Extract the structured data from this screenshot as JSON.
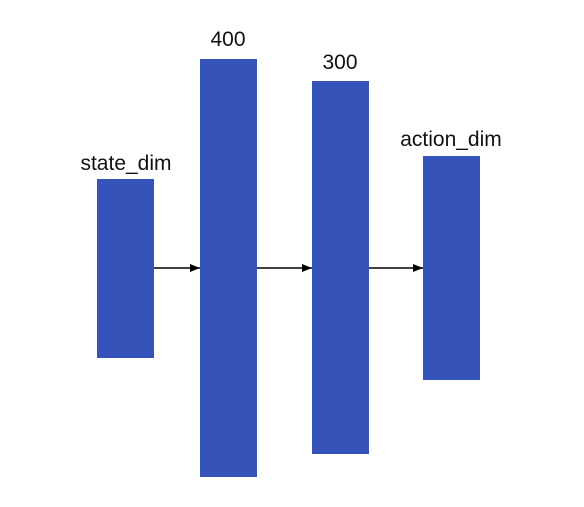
{
  "layers": [
    {
      "label": "state_dim"
    },
    {
      "label": "400"
    },
    {
      "label": "300"
    },
    {
      "label": "action_dim"
    }
  ],
  "colors": {
    "layer_fill": "#3653b9",
    "arrow": "#000000"
  }
}
